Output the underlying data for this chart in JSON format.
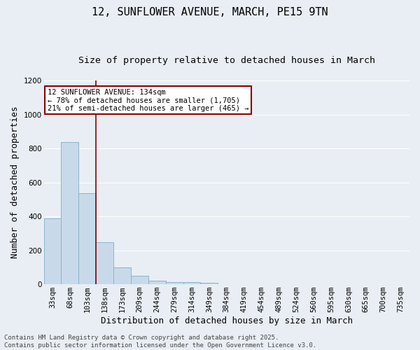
{
  "title_line1": "12, SUNFLOWER AVENUE, MARCH, PE15 9TN",
  "title_line2": "Size of property relative to detached houses in March",
  "xlabel": "Distribution of detached houses by size in March",
  "ylabel": "Number of detached properties",
  "categories": [
    "33sqm",
    "68sqm",
    "103sqm",
    "138sqm",
    "173sqm",
    "209sqm",
    "244sqm",
    "279sqm",
    "314sqm",
    "349sqm",
    "384sqm",
    "419sqm",
    "454sqm",
    "489sqm",
    "524sqm",
    "560sqm",
    "595sqm",
    "630sqm",
    "665sqm",
    "700sqm",
    "735sqm"
  ],
  "values": [
    390,
    838,
    535,
    248,
    100,
    52,
    20,
    15,
    12,
    10,
    0,
    0,
    0,
    0,
    0,
    0,
    0,
    0,
    0,
    0,
    0
  ],
  "bar_color": "#c8daea",
  "bar_edge_color": "#8ab4cc",
  "property_line_color": "#8b0000",
  "annotation_text": "12 SUNFLOWER AVENUE: 134sqm\n← 78% of detached houses are smaller (1,705)\n21% of semi-detached houses are larger (465) →",
  "annotation_box_color": "#ffffff",
  "annotation_box_edge_color": "#8b0000",
  "ylim": [
    0,
    1200
  ],
  "yticks": [
    0,
    200,
    400,
    600,
    800,
    1000,
    1200
  ],
  "footer_line1": "Contains HM Land Registry data © Crown copyright and database right 2025.",
  "footer_line2": "Contains public sector information licensed under the Open Government Licence v3.0.",
  "background_color": "#e8eef4",
  "plot_bg_color": "#e8eef4",
  "grid_color": "#ffffff",
  "title_fontsize": 11,
  "subtitle_fontsize": 9.5,
  "axis_label_fontsize": 9,
  "tick_fontsize": 7.5,
  "annotation_fontsize": 7.5,
  "footer_fontsize": 6.5
}
